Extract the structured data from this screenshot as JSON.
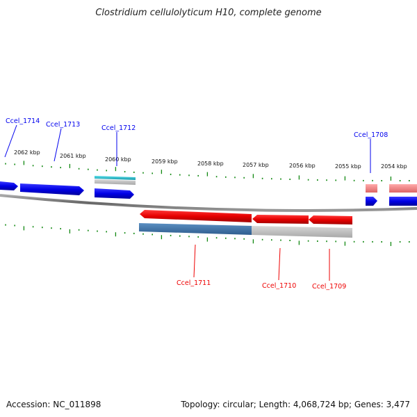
{
  "title": "Clostridium cellulolyticum H10, complete genome",
  "footer": {
    "accession": "Accession: NC_011898",
    "summary": "Topology: circular; Length: 4,068,724 bp; Genes: 3,477"
  },
  "scale_labels": [
    "2062 kbp",
    "2061 kbp",
    "2060 kbp",
    "2059 kbp",
    "2058 kbp",
    "2057 kbp",
    "2056 kbp",
    "2055 kbp",
    "2054 kbp"
  ],
  "gene_labels": {
    "forward": [
      "Ccel_1714",
      "Ccel_1713",
      "Ccel_1712",
      "Ccel_1708"
    ],
    "reverse": [
      "Ccel_1711",
      "Ccel_1710",
      "Ccel_1709"
    ]
  },
  "colors": {
    "forward_strand": "#0000ee",
    "reverse_strand": "#ee0000",
    "tick": "#118811",
    "backbone": "#777777",
    "trna": "#33bbcc",
    "pseudo_blue": "#4477aa",
    "pseudo_red": "#ee8888",
    "faded": "#bbbbbb"
  }
}
